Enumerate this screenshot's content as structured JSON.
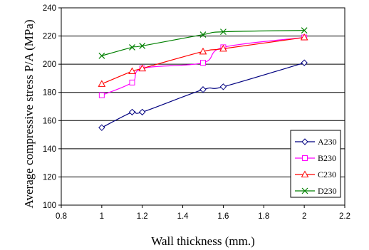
{
  "chart_data": {
    "type": "line",
    "title": "",
    "xlabel": "Wall thickness (mm.)",
    "ylabel": "Average compressive stress P/A (MPa)",
    "xlim": [
      0.8,
      2.2
    ],
    "ylim": [
      100,
      240
    ],
    "xticks": [
      0.8,
      1,
      1.2,
      1.4,
      1.6,
      1.8,
      2,
      2.2
    ],
    "yticks": [
      100,
      120,
      140,
      160,
      180,
      200,
      220,
      240
    ],
    "xtick_labels": [
      "0.8",
      "1",
      "1.2",
      "1.4",
      "1.6",
      "1.8",
      "2",
      "2.2"
    ],
    "ytick_labels": [
      "100",
      "120",
      "140",
      "160",
      "180",
      "200",
      "220",
      "240"
    ],
    "grid": "horizontal",
    "legend_position": "bottom-right",
    "series": [
      {
        "name": "A230",
        "color": "#000080",
        "marker": "diamond",
        "x": [
          1,
          1.15,
          1.2,
          1.5,
          1.6,
          2
        ],
        "y": [
          155,
          166,
          166,
          182,
          184,
          201
        ]
      },
      {
        "name": "B230",
        "color": "#FF00FF",
        "marker": "square",
        "x": [
          1,
          1.15,
          1.2,
          1.5,
          1.6,
          2
        ],
        "y": [
          178,
          187,
          197,
          201,
          212,
          219
        ]
      },
      {
        "name": "C230",
        "color": "#FF0000",
        "marker": "triangle",
        "x": [
          1,
          1.15,
          1.2,
          1.5,
          1.6,
          2
        ],
        "y": [
          186,
          195,
          197,
          209,
          211,
          219
        ]
      },
      {
        "name": "D230",
        "color": "#008000",
        "marker": "x",
        "x": [
          1,
          1.15,
          1.2,
          1.5,
          1.6,
          2
        ],
        "y": [
          206,
          212,
          213,
          221,
          223,
          224
        ]
      }
    ]
  }
}
